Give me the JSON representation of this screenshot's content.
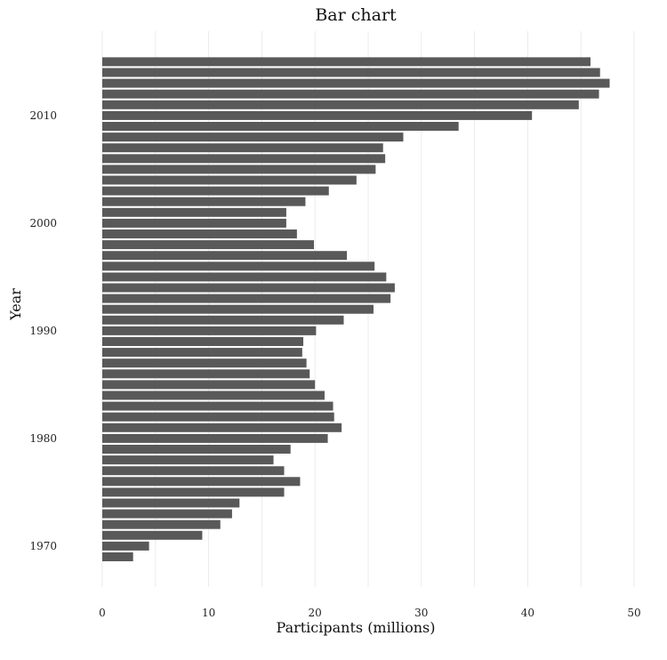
{
  "chart_data": {
    "type": "bar",
    "orientation": "horizontal",
    "title": "Bar chart",
    "xlabel": "Participants (millions)",
    "ylabel": "Year",
    "xlim": [
      0,
      50
    ],
    "x_ticks": [
      "0",
      "10",
      "20",
      "30",
      "40",
      "50"
    ],
    "y_ticks": [
      "1970",
      "1980",
      "1990",
      "2000",
      "2010"
    ],
    "grid": "vertical-major",
    "bar_color": "#595959",
    "categories": [
      1969,
      1970,
      1971,
      1972,
      1973,
      1974,
      1975,
      1976,
      1977,
      1978,
      1979,
      1980,
      1981,
      1982,
      1983,
      1984,
      1985,
      1986,
      1987,
      1988,
      1989,
      1990,
      1991,
      1992,
      1993,
      1994,
      1995,
      1996,
      1997,
      1998,
      1999,
      2000,
      2001,
      2002,
      2003,
      2004,
      2005,
      2006,
      2007,
      2008,
      2009,
      2010,
      2011,
      2012,
      2013,
      2014,
      2015
    ],
    "values": [
      2.9,
      4.4,
      9.4,
      11.1,
      12.2,
      12.9,
      17.1,
      18.6,
      17.1,
      16.1,
      17.7,
      21.2,
      22.5,
      21.8,
      21.7,
      20.9,
      20.0,
      19.5,
      19.2,
      18.8,
      18.9,
      20.1,
      22.7,
      25.5,
      27.1,
      27.5,
      26.7,
      25.6,
      23.0,
      19.9,
      18.3,
      17.3,
      17.3,
      19.1,
      21.3,
      23.9,
      25.7,
      26.6,
      26.4,
      28.3,
      33.5,
      40.4,
      44.8,
      46.7,
      47.7,
      46.8,
      45.9
    ]
  }
}
